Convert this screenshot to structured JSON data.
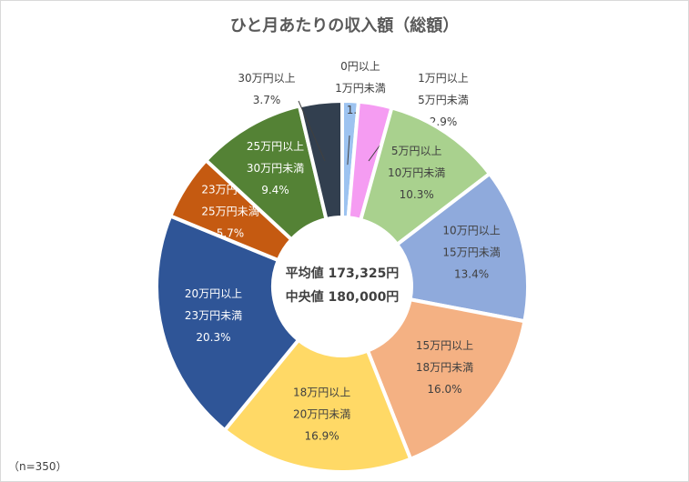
{
  "chart_data": {
    "type": "pie",
    "variant": "donut",
    "title": "ひと月あたりの収入額（総額）",
    "center_text": [
      "平均値 173,325円",
      "中央値 180,000円"
    ],
    "note": "（n=350）",
    "unit": "%",
    "categories": [
      "0円以上 1万円未満",
      "1万円以上 5万円未満",
      "5万円以上 10万円未満",
      "10万円以上 15万円未満",
      "15万円以上 18万円未満",
      "18万円以上 20万円未満",
      "20万円以上 23万円未満",
      "23万円以上 25万円未満",
      "25万円以上 30万円未満",
      "30万円以上"
    ],
    "slices": [
      {
        "label": [
          "0円以上",
          "1万円未満"
        ],
        "value": 1.4,
        "value_label": "1.4%",
        "color": "#9dc3f0",
        "label_color": "#404040",
        "outside": true
      },
      {
        "label": [
          "1万円以上",
          "5万円未満"
        ],
        "value": 2.9,
        "value_label": "2.9%",
        "color": "#f59cf2",
        "label_color": "#404040",
        "outside": true
      },
      {
        "label": [
          "5万円以上",
          "10万円未満"
        ],
        "value": 10.3,
        "value_label": "10.3%",
        "color": "#a9d18e",
        "label_color": "#404040",
        "outside": false
      },
      {
        "label": [
          "10万円以上",
          "15万円未満"
        ],
        "value": 13.4,
        "value_label": "13.4%",
        "color": "#8faadc",
        "label_color": "#404040",
        "outside": false
      },
      {
        "label": [
          "15万円以上",
          "18万円未満"
        ],
        "value": 16.0,
        "value_label": "16.0%",
        "color": "#f4b183",
        "label_color": "#404040",
        "outside": false
      },
      {
        "label": [
          "18万円以上",
          "20万円未満"
        ],
        "value": 16.9,
        "value_label": "16.9%",
        "color": "#ffd966",
        "label_color": "#404040",
        "outside": false
      },
      {
        "label": [
          "20万円以上",
          "23万円未満"
        ],
        "value": 20.3,
        "value_label": "20.3%",
        "color": "#2f5597",
        "label_color": "#ffffff",
        "outside": false
      },
      {
        "label": [
          "23万円以上",
          "25万円未満"
        ],
        "value": 5.7,
        "value_label": "5.7%",
        "color": "#c55a11",
        "label_color": "#ffffff",
        "outside": false
      },
      {
        "label": [
          "25万円以上",
          "30万円未満"
        ],
        "value": 9.4,
        "value_label": "9.4%",
        "color": "#548235",
        "label_color": "#ffffff",
        "outside": false
      },
      {
        "label": [
          "30万円以上"
        ],
        "value": 3.7,
        "value_label": "3.7%",
        "color": "#323f4f",
        "label_color": "#404040",
        "outside": true
      }
    ],
    "legend": "none"
  }
}
